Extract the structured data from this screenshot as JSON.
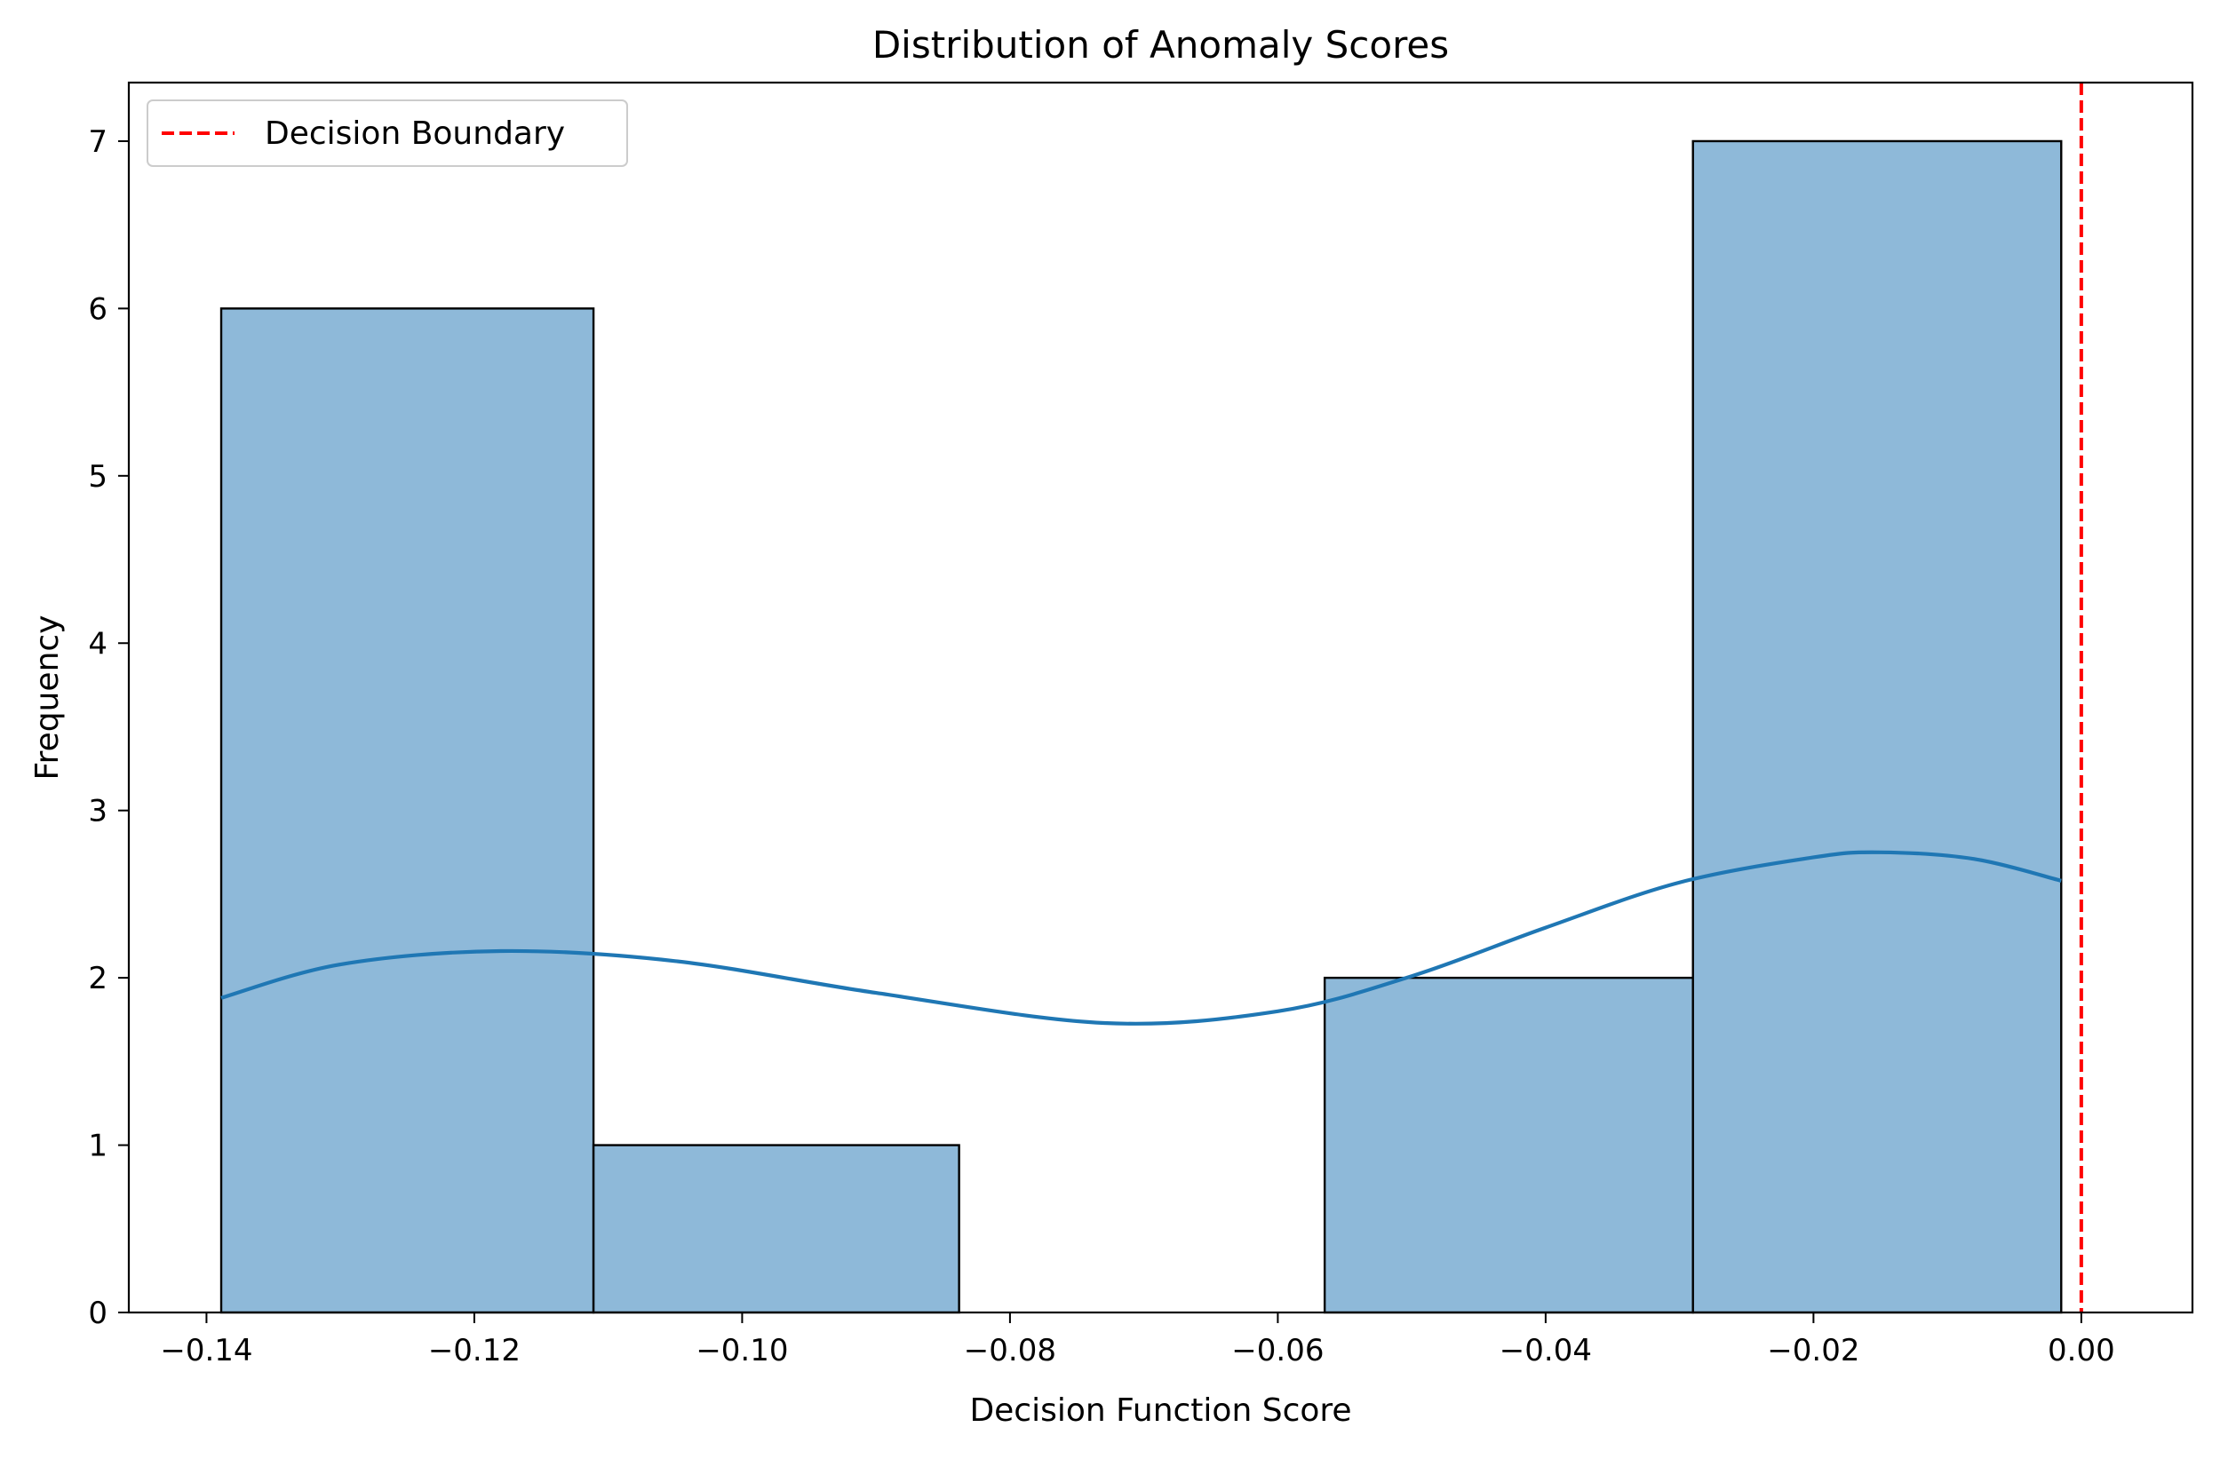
{
  "chart_data": {
    "type": "bar",
    "title": "Distribution of Anomaly Scores",
    "xlabel": "Decision Function Score",
    "ylabel": "Frequency",
    "xlim": [
      -0.1458,
      0.0083
    ],
    "ylim": [
      0,
      7.35
    ],
    "x_ticks": [
      -0.14,
      -0.12,
      -0.1,
      -0.08,
      -0.06,
      -0.04,
      -0.02,
      0.0
    ],
    "x_tick_labels": [
      "−0.14",
      "−0.12",
      "−0.10",
      "−0.08",
      "−0.06",
      "−0.04",
      "−0.02",
      "0.00"
    ],
    "y_ticks": [
      0,
      1,
      2,
      3,
      4,
      5,
      6,
      7
    ],
    "y_tick_labels": [
      "0",
      "1",
      "2",
      "3",
      "4",
      "5",
      "6",
      "7"
    ],
    "bins": [
      {
        "start": -0.1389,
        "end": -0.1111,
        "count": 6
      },
      {
        "start": -0.1111,
        "end": -0.0838,
        "count": 1
      },
      {
        "start": -0.0838,
        "end": -0.0565,
        "count": 0
      },
      {
        "start": -0.0565,
        "end": -0.029,
        "count": 2
      },
      {
        "start": -0.029,
        "end": -0.0015,
        "count": 7
      }
    ],
    "kde": {
      "x": [
        -0.1389,
        -0.13,
        -0.118,
        -0.105,
        -0.09,
        -0.073,
        -0.06,
        -0.05,
        -0.04,
        -0.03,
        -0.02,
        -0.015,
        -0.008,
        -0.0015
      ],
      "y": [
        1.88,
        2.08,
        2.16,
        2.1,
        1.91,
        1.73,
        1.8,
        2.01,
        2.3,
        2.57,
        2.72,
        2.75,
        2.71,
        2.58
      ]
    },
    "boundary": {
      "x": 0.0,
      "label": "Decision Boundary",
      "color": "#ff0000",
      "style": "dashed"
    },
    "colors": {
      "bar_fill": "#8eb9d9",
      "bar_edge": "#000000",
      "kde": "#1f77b4"
    },
    "legend": {
      "position": "top-left",
      "entries": [
        "Decision Boundary"
      ]
    },
    "grid": false
  }
}
